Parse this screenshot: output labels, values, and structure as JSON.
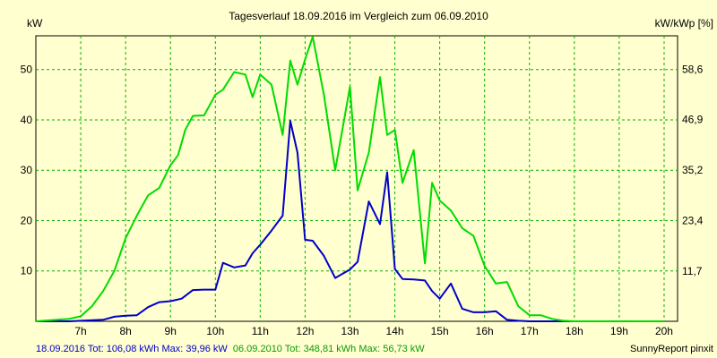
{
  "chart_data": {
    "type": "line",
    "title": "Tagesverlauf 18.09.2016 im Vergleich zum 06.09.2010",
    "ylabel_left": "kW",
    "ylabel_right": "kW/kWp [%]",
    "x_ticks": [
      "7h",
      "8h",
      "9h",
      "10h",
      "11h",
      "12h",
      "13h",
      "14h",
      "15h",
      "16h",
      "17h",
      "18h",
      "19h",
      "20h"
    ],
    "x_tick_values": [
      7,
      8,
      9,
      10,
      11,
      12,
      13,
      14,
      15,
      16,
      17,
      18,
      19,
      20
    ],
    "xlim": [
      6,
      20.3
    ],
    "y_ticks": [
      10,
      20,
      30,
      40,
      50
    ],
    "ylim": [
      0,
      56.7
    ],
    "y2_ticks": [
      "11,7",
      "23,4",
      "35,2",
      "46,9",
      "58,6"
    ],
    "y2_tick_values": [
      11.7,
      23.4,
      35.2,
      46.9,
      58.6
    ],
    "y2lim": [
      0,
      66.4
    ],
    "grid": true,
    "series": [
      {
        "name": "18.09.2016",
        "color": "#0000c8",
        "x": [
          6.0,
          6.5,
          6.75,
          7.0,
          7.5,
          7.75,
          8.0,
          8.25,
          8.5,
          8.75,
          9.0,
          9.25,
          9.5,
          9.75,
          10.0,
          10.17,
          10.42,
          10.67,
          10.83,
          11.0,
          11.25,
          11.5,
          11.67,
          11.83,
          12.0,
          12.17,
          12.42,
          12.67,
          13.0,
          13.17,
          13.42,
          13.67,
          13.83,
          14.0,
          14.17,
          14.42,
          14.67,
          14.83,
          15.0,
          15.25,
          15.5,
          15.75,
          16.0,
          16.25,
          16.5,
          16.75,
          17.0,
          17.25,
          17.42,
          17.67,
          18.0,
          18.5,
          19.0,
          20.0
        ],
        "y": [
          0,
          0,
          0,
          0.1,
          0.3,
          0.9,
          1.1,
          1.2,
          2.8,
          3.8,
          4.0,
          4.5,
          6.2,
          6.3,
          6.3,
          11.6,
          10.7,
          11.1,
          13.5,
          15.2,
          18.0,
          21.0,
          39.8,
          33.5,
          16.2,
          16.0,
          13.0,
          8.6,
          10.3,
          11.8,
          23.8,
          19.3,
          29.6,
          10.4,
          8.4,
          8.3,
          8.1,
          6.0,
          4.5,
          7.5,
          2.5,
          1.8,
          1.8,
          2.0,
          0.3,
          0.1,
          0,
          0,
          0,
          0,
          0,
          0,
          0,
          0
        ]
      },
      {
        "name": "06.09.2010",
        "color": "#00dc00",
        "x": [
          6.0,
          6.75,
          7.0,
          7.25,
          7.5,
          7.75,
          8.0,
          8.25,
          8.5,
          8.75,
          9.0,
          9.17,
          9.33,
          9.5,
          9.75,
          10.0,
          10.17,
          10.42,
          10.67,
          10.83,
          11.0,
          11.25,
          11.5,
          11.67,
          11.83,
          12.0,
          12.17,
          12.42,
          12.67,
          13.0,
          13.17,
          13.42,
          13.67,
          13.83,
          14.0,
          14.17,
          14.42,
          14.67,
          14.83,
          15.0,
          15.25,
          15.5,
          15.75,
          16.0,
          16.25,
          16.5,
          16.75,
          17.0,
          17.25,
          17.5,
          17.75,
          18.0,
          18.25,
          18.5,
          18.75,
          19.0,
          19.5,
          20.0
        ],
        "y": [
          0,
          0.5,
          1.0,
          3.0,
          6.0,
          10.0,
          16.5,
          21.0,
          25.0,
          26.5,
          31.0,
          33.0,
          38.0,
          40.8,
          40.9,
          45.0,
          46.0,
          49.5,
          49.0,
          44.5,
          49.0,
          47.0,
          37.0,
          51.8,
          47.0,
          52.0,
          56.5,
          45.0,
          30.0,
          46.6,
          26.0,
          33.5,
          48.5,
          37.0,
          38.0,
          27.5,
          34.0,
          11.5,
          27.5,
          24.0,
          22.0,
          18.5,
          17.0,
          11.0,
          7.5,
          7.8,
          3.0,
          1.2,
          1.2,
          0.5,
          0.1,
          0,
          0,
          0,
          0,
          0,
          0,
          0
        ]
      }
    ],
    "footer_left": [
      {
        "text": "18.09.2016 Tot: 106,08 kWh Max: 39,96 kW",
        "color": "#0000c8"
      },
      {
        "text": "06.09.2010 Tot: 348,81 kWh Max: 56,73 kW",
        "color": "#0a9a0a"
      }
    ],
    "footer_right": "SunnyReport pinxit"
  }
}
